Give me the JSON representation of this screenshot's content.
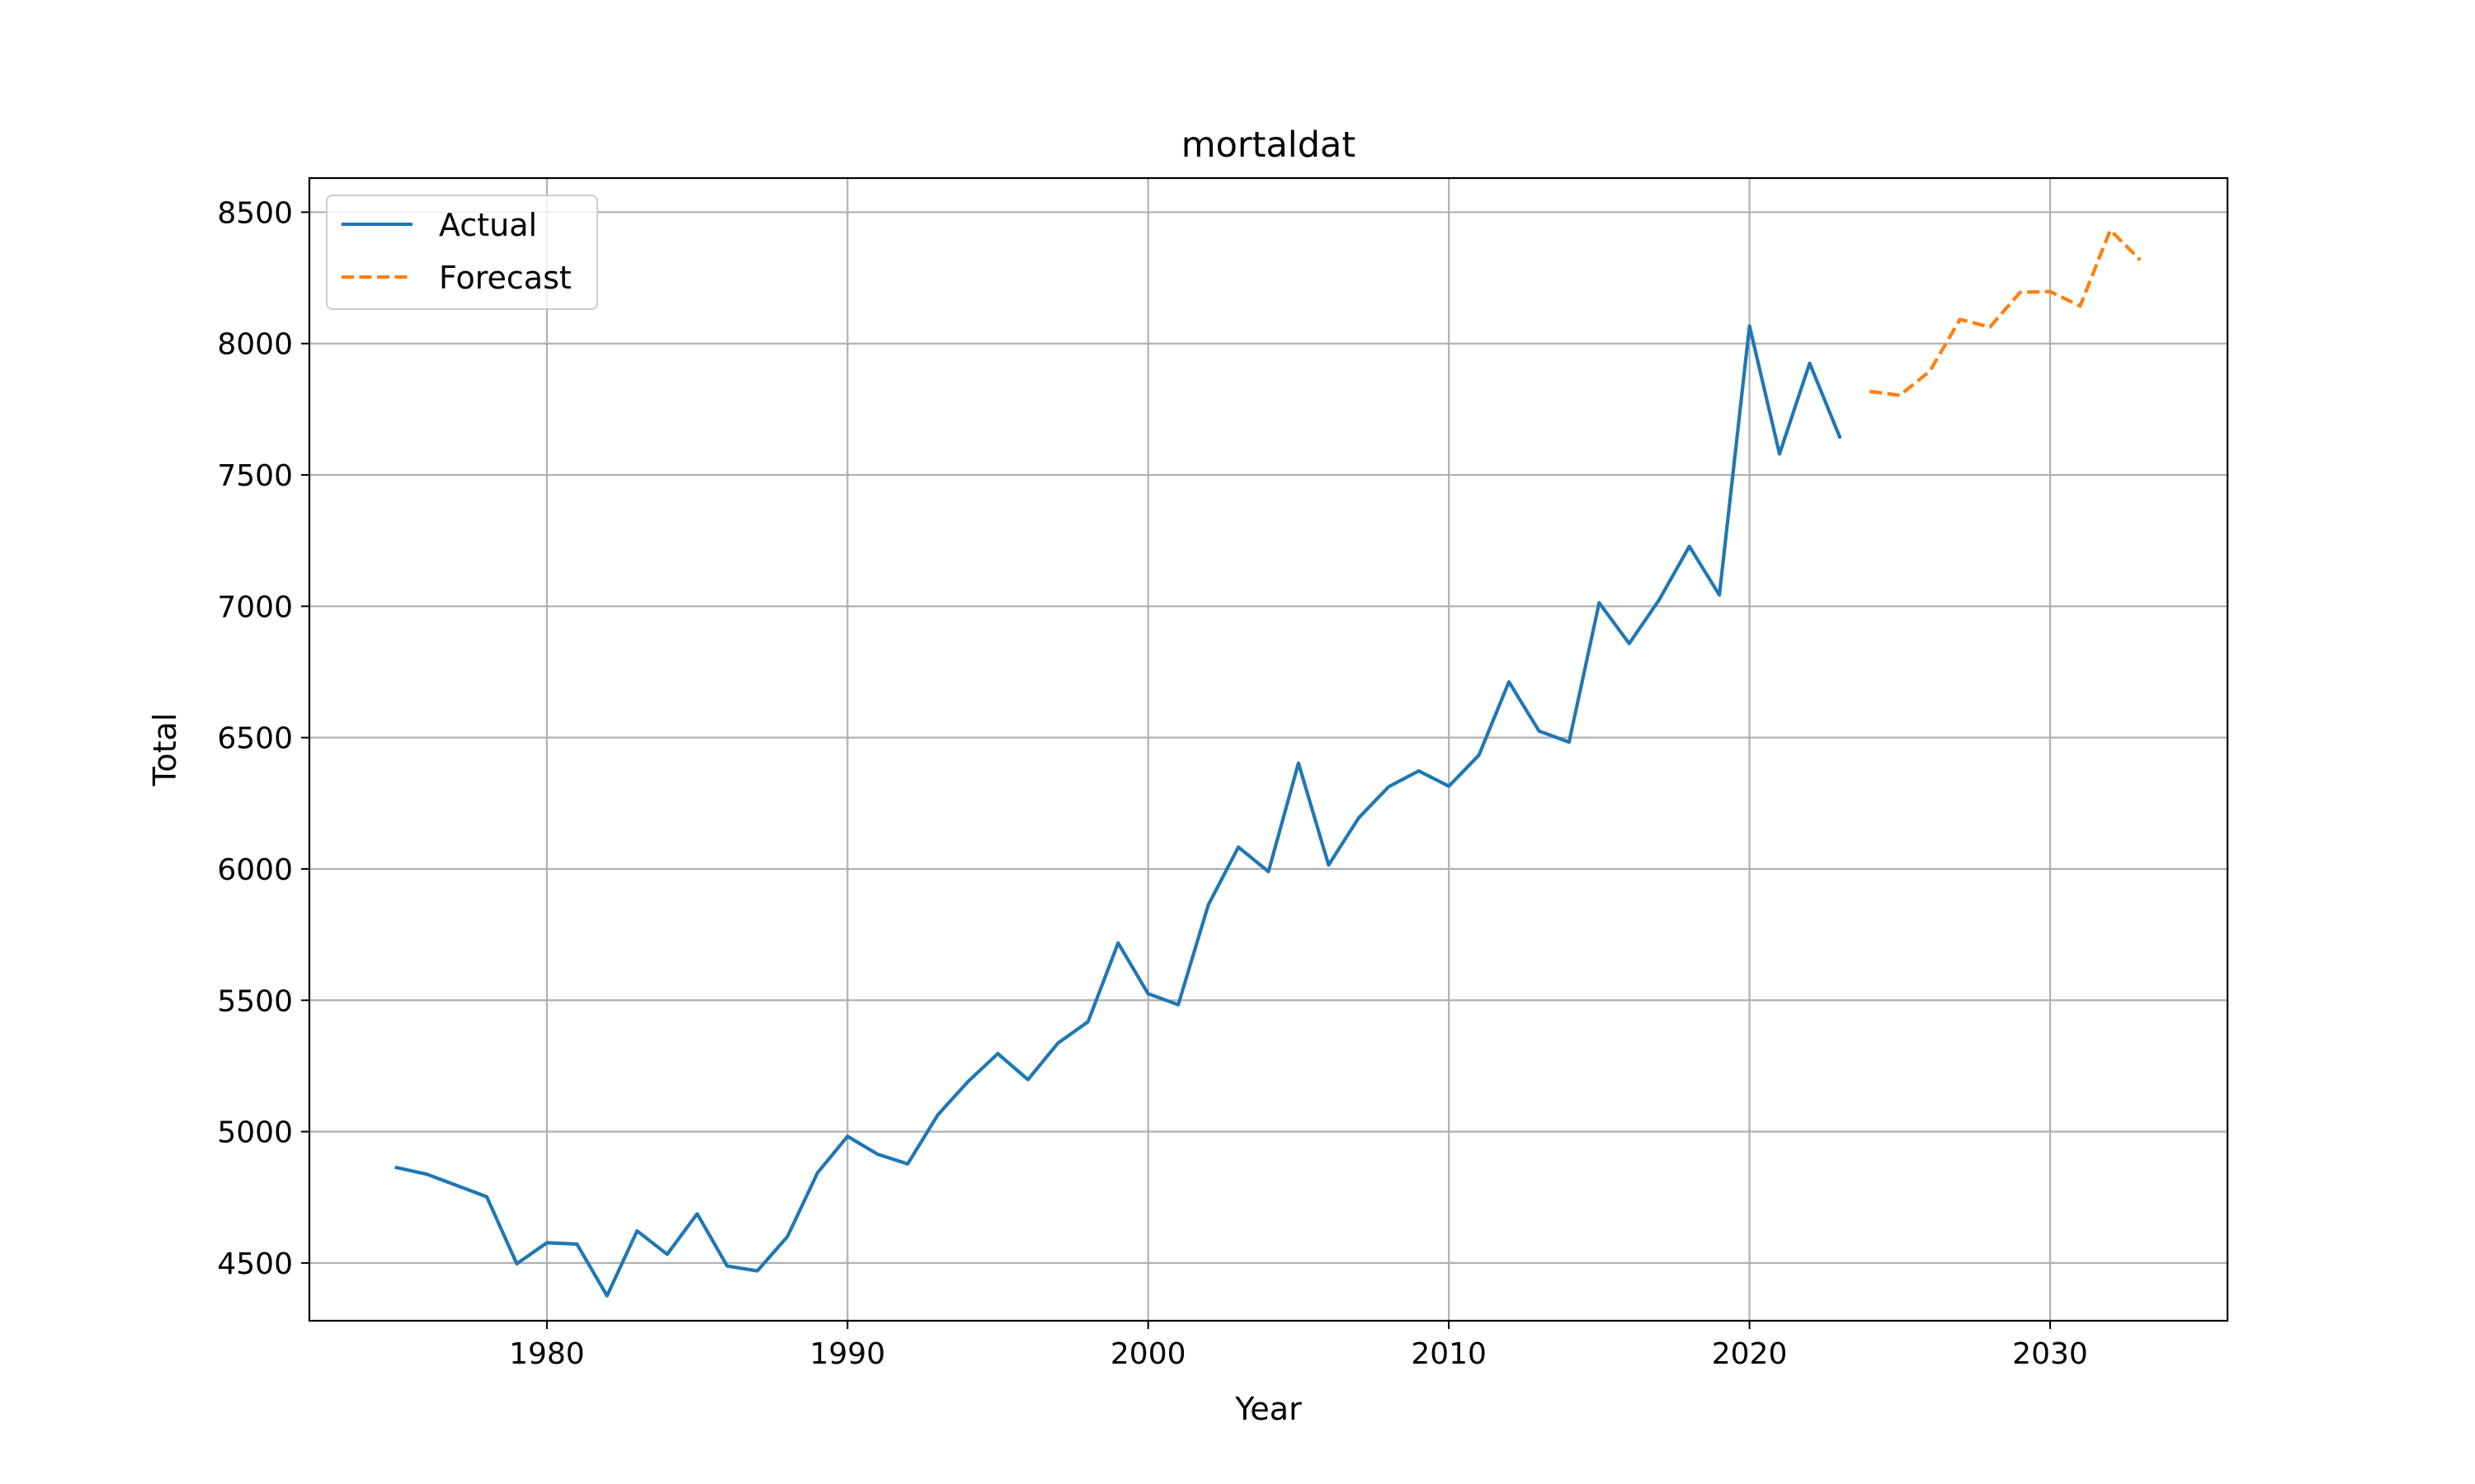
{
  "chart_data": {
    "type": "line",
    "title": "mortaldat",
    "xlabel": "Year",
    "ylabel": "Total",
    "xlim": [
      1972.1,
      2035.9
    ],
    "ylim": [
      4280,
      8630
    ],
    "xticks": [
      1980,
      1990,
      2000,
      2010,
      2020,
      2030
    ],
    "yticks": [
      4500,
      5000,
      5500,
      6000,
      6500,
      7000,
      7500,
      8000,
      8500
    ],
    "grid": true,
    "legend_position": "upper-left",
    "series": [
      {
        "name": "Actual",
        "color": "#1f77b4",
        "style": "solid",
        "x": [
          1975,
          1976,
          1977,
          1978,
          1979,
          1980,
          1981,
          1982,
          1983,
          1984,
          1985,
          1986,
          1987,
          1988,
          1989,
          1990,
          1991,
          1992,
          1993,
          1994,
          1995,
          1996,
          1997,
          1998,
          1999,
          2000,
          2001,
          2002,
          2003,
          2004,
          2005,
          2006,
          2007,
          2008,
          2009,
          2010,
          2011,
          2012,
          2013,
          2014,
          2015,
          2016,
          2017,
          2018,
          2019,
          2020,
          2021,
          2022,
          2023
        ],
        "values": [
          4863,
          4838,
          4795,
          4752,
          4497,
          4577,
          4572,
          4375,
          4622,
          4533,
          4687,
          4488,
          4470,
          4600,
          4843,
          4982,
          4914,
          4877,
          5063,
          5190,
          5297,
          5198,
          5337,
          5418,
          5718,
          5525,
          5483,
          5863,
          6083,
          5990,
          6403,
          6015,
          6194,
          6313,
          6373,
          6315,
          6433,
          6712,
          6525,
          6483,
          7013,
          6858,
          7025,
          7228,
          7043,
          8067,
          7580,
          7925,
          7645
        ]
      },
      {
        "name": "Forecast",
        "color": "#ff7f0e",
        "style": "dashed",
        "x": [
          2024,
          2025,
          2026,
          2027,
          2028,
          2029,
          2030,
          2031,
          2032,
          2033
        ],
        "values": [
          7818,
          7803,
          7895,
          8092,
          8063,
          8195,
          8198,
          8143,
          8432,
          8318
        ]
      }
    ]
  }
}
